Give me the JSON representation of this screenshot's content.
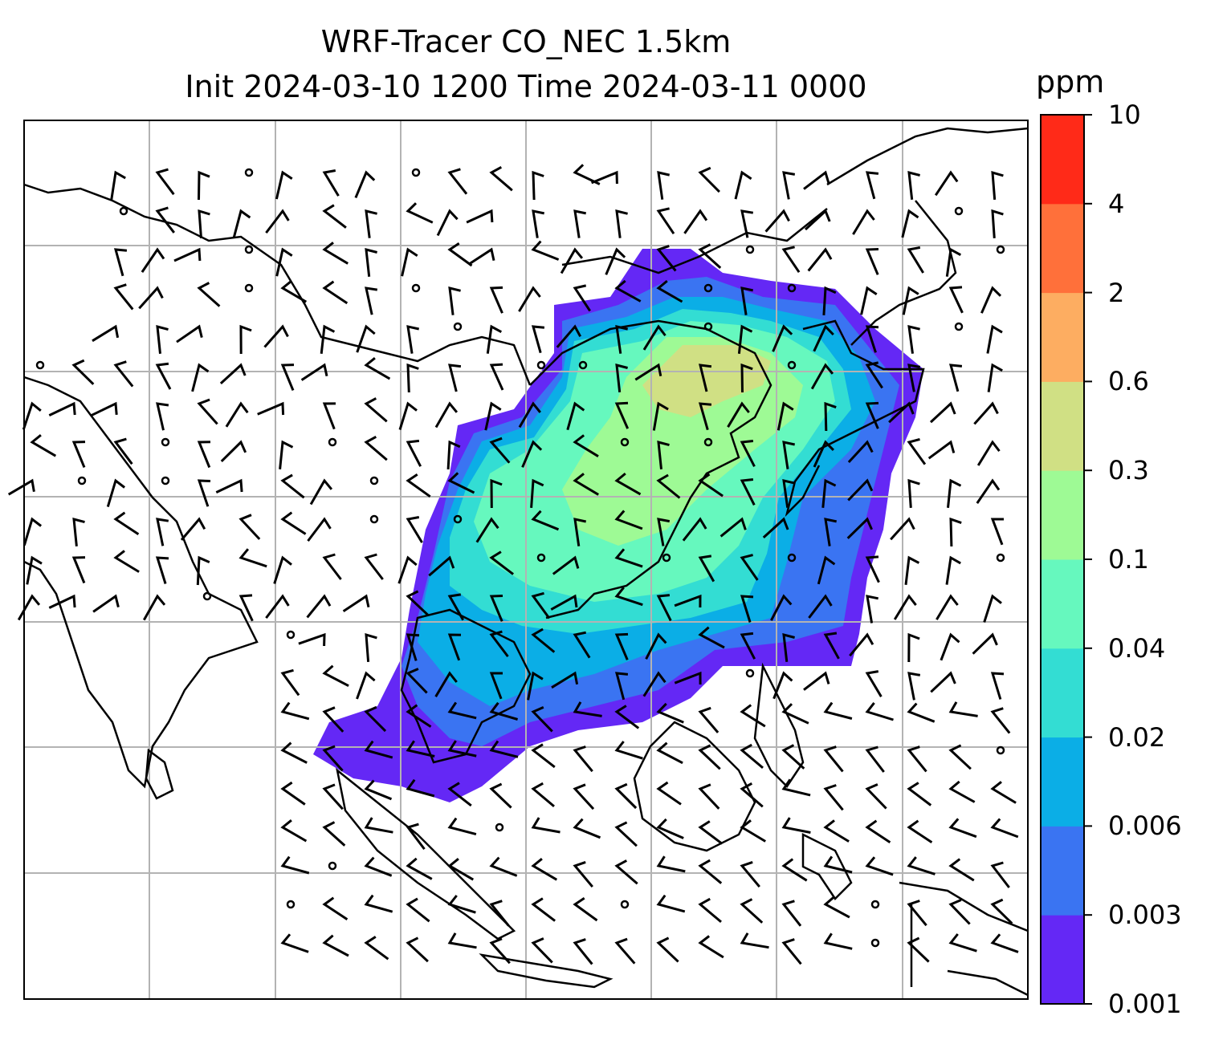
{
  "title_line1": "WRF-Tracer CO_NEC 1.5km",
  "title_line2": "Init 2024-03-10 1200 Time 2024-03-11 0000",
  "colorbar": {
    "unit": "ppm",
    "levels": [
      "0.001",
      "0.003",
      "0.006",
      "0.02",
      "0.04",
      "0.1",
      "0.3",
      "0.6",
      "2",
      "4",
      "10"
    ],
    "colors": [
      "#6428f5",
      "#3a74f2",
      "#0baee6",
      "#33ddd3",
      "#66f8be",
      "#9efa95",
      "#d0e084",
      "#fdad61",
      "#ff703a",
      "#ff2a18"
    ]
  },
  "map": {
    "grid": "on",
    "wind_barbs": "black",
    "tracer_plume_colors": {
      "outer": "#6428f5",
      "band2": "#3a74f2",
      "band3": "#0baee6",
      "band4": "#33ddd3",
      "band5": "#66f8be",
      "core": "#9efa95",
      "peak": "#d0e084"
    }
  }
}
